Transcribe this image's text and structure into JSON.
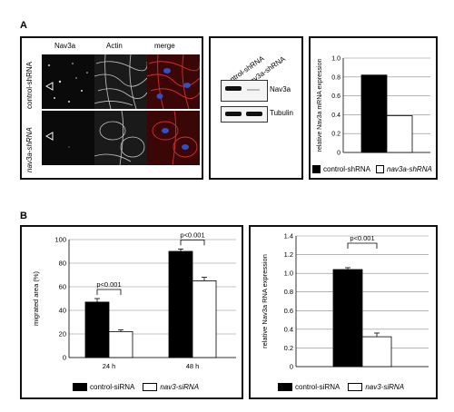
{
  "panelA": {
    "letter": "A",
    "micro_headers": [
      "Nav3a",
      "Actin",
      "merge"
    ],
    "row_labels": [
      "control-shRNA",
      "nav3a-shRNA"
    ],
    "western": {
      "lanes": [
        "control-shRNA",
        "Nav3a-shRNA"
      ],
      "bands": [
        "Nav3a",
        "Tubulin"
      ]
    },
    "legend": [
      "control-shRNA",
      "nav3a-shRNA"
    ]
  },
  "panelB": {
    "letter": "B",
    "legend_left": [
      "control-siRNA",
      "nav3-siRNA"
    ],
    "legend_right": [
      "control-siRNA",
      "nav3-siRNA"
    ]
  },
  "chart_data": [
    {
      "type": "bar",
      "ylabel": "relative Nav3a mRNA expression",
      "ylim": [
        0,
        1.0
      ],
      "yticks": [
        "0",
        "0.2",
        "0.4",
        "0.6",
        "0.8",
        "1.0"
      ],
      "series": [
        {
          "name": "control-shRNA",
          "values": [
            0.82
          ],
          "color": "#000000"
        },
        {
          "name": "nav3a-shRNA",
          "values": [
            0.39
          ],
          "color": "#ffffff"
        }
      ]
    },
    {
      "type": "bar",
      "ylabel": "migrated area (%)",
      "ylim": [
        0,
        100
      ],
      "yticks": [
        "0",
        "20",
        "40",
        "60",
        "80",
        "100"
      ],
      "categories": [
        "24 h",
        "48 h"
      ],
      "series": [
        {
          "name": "control-siRNA",
          "values": [
            47,
            90
          ],
          "errors": [
            3,
            2
          ],
          "color": "#000000"
        },
        {
          "name": "nav3-siRNA",
          "values": [
            22,
            65
          ],
          "errors": [
            1.5,
            3
          ],
          "color": "#ffffff"
        }
      ],
      "annotations": [
        "p<0.001",
        "p<0.001"
      ]
    },
    {
      "type": "bar",
      "ylabel": "relative Nav3a RNA expression",
      "ylim": [
        0,
        1.4
      ],
      "yticks": [
        "0",
        "0.2",
        "0.4",
        "0.6",
        "0.8",
        "1.0",
        "1.2",
        "1.4"
      ],
      "series": [
        {
          "name": "control-siRNA",
          "values": [
            1.04
          ],
          "errors": [
            0.02
          ],
          "color": "#000000"
        },
        {
          "name": "nav3-siRNA",
          "values": [
            0.32
          ],
          "errors": [
            0.04
          ],
          "color": "#ffffff"
        }
      ],
      "annotations": [
        "p<0.001"
      ]
    }
  ]
}
